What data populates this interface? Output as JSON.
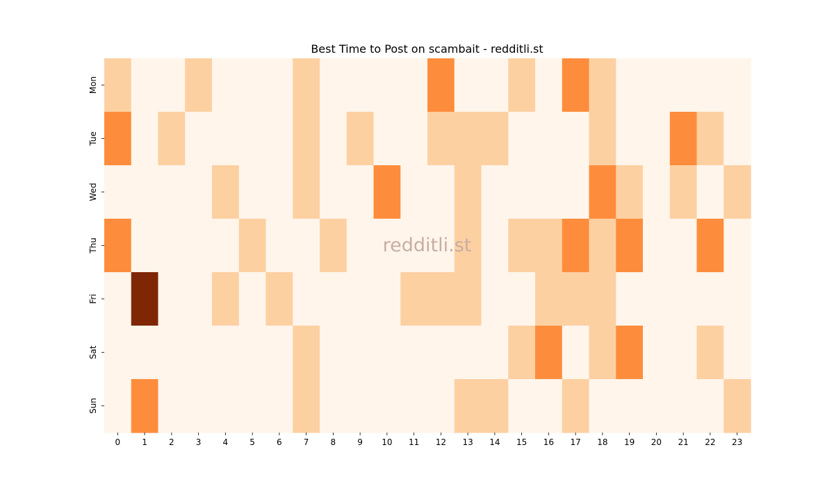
{
  "chart_data": {
    "type": "heatmap",
    "title": "Best Time to Post on scambait - redditli.st",
    "xlabel": "",
    "ylabel": "",
    "x": [
      "0",
      "1",
      "2",
      "3",
      "4",
      "5",
      "6",
      "7",
      "8",
      "9",
      "10",
      "11",
      "12",
      "13",
      "14",
      "15",
      "16",
      "17",
      "18",
      "19",
      "20",
      "21",
      "22",
      "23"
    ],
    "y": [
      "Mon",
      "Tue",
      "Wed",
      "Thu",
      "Fri",
      "Sat",
      "Sun"
    ],
    "values": [
      [
        1,
        0,
        0,
        1,
        0,
        0,
        0,
        1,
        0,
        0,
        0,
        0,
        2,
        0,
        0,
        1,
        0,
        2,
        1,
        0,
        0,
        0,
        0,
        0
      ],
      [
        2,
        0,
        1,
        0,
        0,
        0,
        0,
        1,
        0,
        1,
        0,
        0,
        1,
        1,
        1,
        0,
        0,
        0,
        1,
        0,
        0,
        2,
        1,
        0
      ],
      [
        0,
        0,
        0,
        0,
        1,
        0,
        0,
        1,
        0,
        0,
        2,
        0,
        0,
        1,
        0,
        0,
        0,
        0,
        2,
        1,
        0,
        1,
        0,
        1
      ],
      [
        2,
        0,
        0,
        0,
        0,
        1,
        0,
        0,
        1,
        0,
        0,
        0,
        0,
        1,
        0,
        1,
        1,
        2,
        1,
        2,
        0,
        0,
        2,
        0
      ],
      [
        0,
        4,
        0,
        0,
        1,
        0,
        1,
        0,
        0,
        0,
        0,
        1,
        1,
        1,
        0,
        0,
        1,
        1,
        1,
        0,
        0,
        0,
        0,
        0
      ],
      [
        0,
        0,
        0,
        0,
        0,
        0,
        0,
        1,
        0,
        0,
        0,
        0,
        0,
        0,
        0,
        1,
        2,
        0,
        1,
        2,
        0,
        0,
        1,
        0
      ],
      [
        0,
        2,
        0,
        0,
        0,
        0,
        0,
        1,
        0,
        0,
        0,
        0,
        0,
        1,
        1,
        0,
        0,
        1,
        0,
        0,
        0,
        0,
        0,
        1
      ]
    ],
    "color_scale": {
      "0": "#fff5eb",
      "1": "#fdd0a2",
      "2": "#fd8d3c",
      "4": "#7f2704"
    },
    "grid": false,
    "legend": "none",
    "watermark": "redditli.st"
  }
}
